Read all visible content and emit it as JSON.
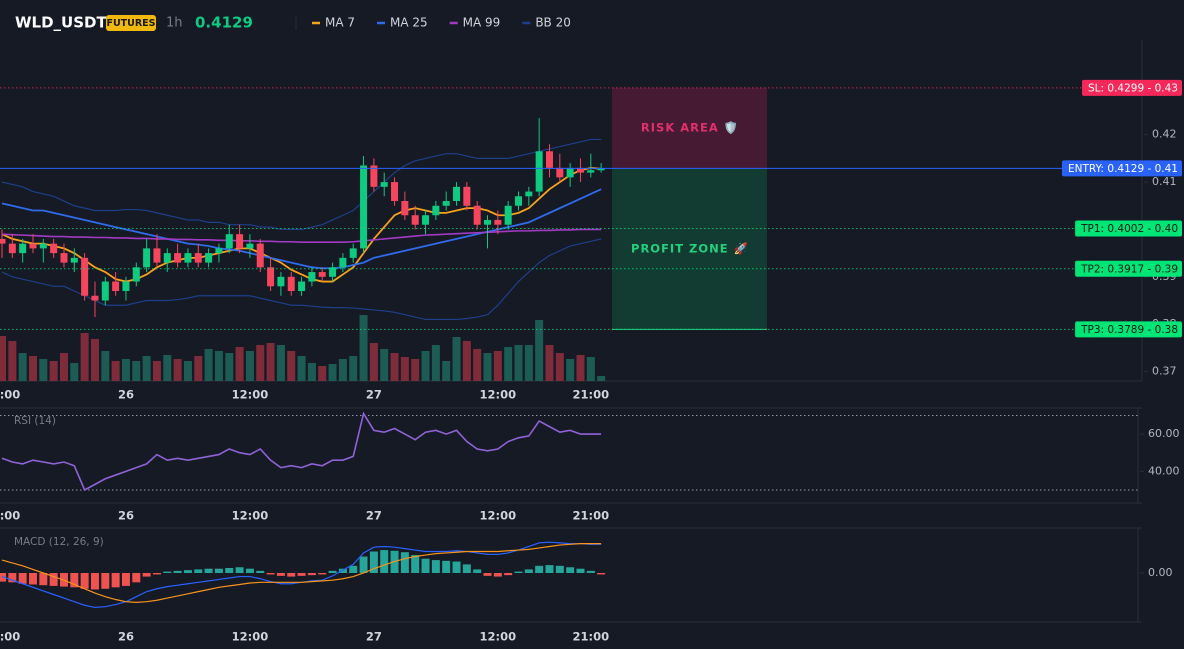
{
  "header": {
    "symbol": "WLD_USDT",
    "badge": "FUTURES",
    "interval": "1h",
    "last": 0.4129
  },
  "chart_data": [
    {
      "type": "candlestick",
      "categories": [
        "12:00",
        null,
        null,
        null,
        null,
        null,
        null,
        null,
        null,
        null,
        null,
        null,
        "26",
        null,
        null,
        null,
        null,
        null,
        null,
        null,
        null,
        null,
        null,
        null,
        "12:00",
        null,
        null,
        null,
        null,
        null,
        null,
        null,
        null,
        null,
        null,
        null,
        "27",
        null,
        null,
        null,
        null,
        null,
        null,
        null,
        null,
        null,
        null,
        null,
        "12:00",
        null,
        null,
        null,
        null,
        null,
        null,
        null,
        null,
        "21:00",
        null
      ],
      "open": [
        0.398,
        0.397,
        0.395,
        0.397,
        0.396,
        0.397,
        0.395,
        0.393,
        0.394,
        0.386,
        0.385,
        0.389,
        0.387,
        0.389,
        0.392,
        0.396,
        0.393,
        0.395,
        0.393,
        0.395,
        0.393,
        0.395,
        0.396,
        0.399,
        0.396,
        0.397,
        0.392,
        0.388,
        0.39,
        0.387,
        0.389,
        0.391,
        0.39,
        0.392,
        0.394,
        0.396,
        0.4135,
        0.409,
        0.41,
        0.406,
        0.403,
        0.401,
        0.403,
        0.405,
        0.406,
        0.409,
        0.405,
        0.401,
        0.402,
        0.401,
        0.405,
        0.407,
        0.408,
        0.4165,
        0.413,
        0.411,
        0.413,
        0.412,
        0.4125
      ],
      "high": [
        0.4,
        0.399,
        0.398,
        0.399,
        0.398,
        0.398,
        0.397,
        0.396,
        0.395,
        0.389,
        0.39,
        0.391,
        0.39,
        0.393,
        0.398,
        0.399,
        0.396,
        0.397,
        0.396,
        0.397,
        0.396,
        0.397,
        0.401,
        0.401,
        0.399,
        0.398,
        0.394,
        0.391,
        0.391,
        0.39,
        0.392,
        0.392,
        0.393,
        0.395,
        0.397,
        0.4155,
        0.415,
        0.412,
        0.411,
        0.408,
        0.405,
        0.404,
        0.406,
        0.408,
        0.41,
        0.41,
        0.406,
        0.403,
        0.404,
        0.406,
        0.408,
        0.409,
        0.4235,
        0.418,
        0.416,
        0.414,
        0.415,
        0.416,
        0.414
      ],
      "low": [
        0.394,
        0.394,
        0.393,
        0.395,
        0.393,
        0.394,
        0.392,
        0.391,
        0.385,
        0.3815,
        0.384,
        0.386,
        0.385,
        0.388,
        0.391,
        0.392,
        0.391,
        0.392,
        0.392,
        0.392,
        0.392,
        0.393,
        0.395,
        0.395,
        0.394,
        0.391,
        0.387,
        0.386,
        0.386,
        0.386,
        0.388,
        0.389,
        0.389,
        0.391,
        0.393,
        0.395,
        0.408,
        0.407,
        0.405,
        0.402,
        0.4,
        0.399,
        0.402,
        0.404,
        0.405,
        0.404,
        0.4,
        0.396,
        0.399,
        0.4,
        0.404,
        0.405,
        0.407,
        0.411,
        0.41,
        0.409,
        0.41,
        0.411,
        0.412
      ],
      "close": [
        0.397,
        0.395,
        0.397,
        0.396,
        0.397,
        0.395,
        0.393,
        0.394,
        0.386,
        0.385,
        0.389,
        0.387,
        0.389,
        0.392,
        0.396,
        0.393,
        0.395,
        0.393,
        0.395,
        0.393,
        0.395,
        0.396,
        0.399,
        0.396,
        0.397,
        0.392,
        0.388,
        0.39,
        0.387,
        0.389,
        0.391,
        0.39,
        0.392,
        0.394,
        0.396,
        0.4135,
        0.409,
        0.41,
        0.406,
        0.403,
        0.401,
        0.403,
        0.405,
        0.406,
        0.409,
        0.405,
        0.401,
        0.402,
        0.401,
        0.405,
        0.407,
        0.408,
        0.4165,
        0.413,
        0.411,
        0.413,
        0.412,
        0.4125,
        0.4129
      ],
      "volume": [
        45,
        40,
        28,
        25,
        22,
        20,
        28,
        18,
        48,
        42,
        30,
        20,
        22,
        20,
        25,
        20,
        26,
        22,
        20,
        25,
        32,
        30,
        28,
        34,
        30,
        36,
        38,
        36,
        30,
        25,
        18,
        15,
        17,
        22,
        25,
        66,
        38,
        32,
        28,
        24,
        22,
        30,
        36,
        20,
        44,
        40,
        32,
        28,
        30,
        34,
        36,
        36,
        61,
        36,
        28,
        22,
        26,
        24,
        5
      ],
      "up_color": "#0ecb81",
      "down_color": "#f6465d",
      "volume_up_color": "#1d5c55",
      "volume_down_color": "#7e2c3a",
      "ylim": [
        0.368,
        0.44
      ],
      "yticks": [
        0.37,
        0.38,
        0.39,
        0.4,
        0.41,
        0.42,
        0.43
      ],
      "series": [
        {
          "name": "MA 7",
          "color": "#f7a21b",
          "values": [
            0.399,
            0.398,
            0.3975,
            0.397,
            0.397,
            0.3965,
            0.396,
            0.395,
            0.3935,
            0.392,
            0.391,
            0.3895,
            0.389,
            0.3895,
            0.3905,
            0.392,
            0.393,
            0.3935,
            0.394,
            0.394,
            0.3945,
            0.395,
            0.3955,
            0.396,
            0.396,
            0.395,
            0.394,
            0.393,
            0.3915,
            0.3905,
            0.3895,
            0.389,
            0.389,
            0.3905,
            0.392,
            0.395,
            0.398,
            0.4005,
            0.403,
            0.404,
            0.4045,
            0.404,
            0.4035,
            0.4035,
            0.404,
            0.4045,
            0.4045,
            0.404,
            0.403,
            0.403,
            0.4035,
            0.4045,
            0.4065,
            0.4085,
            0.41,
            0.4115,
            0.4125,
            0.413,
            0.4128
          ]
        },
        {
          "name": "MA 25",
          "color": "#2f6bea",
          "values": [
            0.4055,
            0.405,
            0.4045,
            0.404,
            0.404,
            0.4035,
            0.403,
            0.4025,
            0.402,
            0.4015,
            0.401,
            0.4005,
            0.4,
            0.3995,
            0.399,
            0.3985,
            0.398,
            0.3975,
            0.397,
            0.3968,
            0.3965,
            0.396,
            0.3958,
            0.3955,
            0.395,
            0.3945,
            0.394,
            0.3935,
            0.393,
            0.3925,
            0.392,
            0.3918,
            0.3918,
            0.392,
            0.3925,
            0.393,
            0.394,
            0.3945,
            0.395,
            0.3955,
            0.396,
            0.3965,
            0.397,
            0.3975,
            0.398,
            0.3985,
            0.399,
            0.3995,
            0.4,
            0.4005,
            0.401,
            0.4015,
            0.4025,
            0.4035,
            0.4045,
            0.4055,
            0.4065,
            0.4075,
            0.4085
          ]
        },
        {
          "name": "MA 99",
          "color": "#a23bc4",
          "values": [
            0.399,
            0.3989,
            0.3988,
            0.3987,
            0.3986,
            0.3985,
            0.3985,
            0.3984,
            0.3984,
            0.3983,
            0.3983,
            0.3982,
            0.3982,
            0.3981,
            0.3981,
            0.398,
            0.398,
            0.3979,
            0.3979,
            0.3978,
            0.3978,
            0.3977,
            0.3977,
            0.3976,
            0.3976,
            0.3975,
            0.3975,
            0.3974,
            0.3974,
            0.3973,
            0.3973,
            0.3973,
            0.3973,
            0.3973,
            0.3974,
            0.3976,
            0.3978,
            0.398,
            0.3982,
            0.3984,
            0.3986,
            0.3988,
            0.3989,
            0.399,
            0.3991,
            0.3992,
            0.3993,
            0.3994,
            0.3995,
            0.3996,
            0.3997,
            0.3997,
            0.3998,
            0.3998,
            0.3999,
            0.3999,
            0.4,
            0.4,
            0.4
          ]
        },
        {
          "name": "BB 20",
          "color": "#1e3f8a",
          "upper": [
            0.41,
            0.4095,
            0.409,
            0.408,
            0.4075,
            0.407,
            0.406,
            0.405,
            0.4045,
            0.404,
            0.404,
            0.404,
            0.4042,
            0.4042,
            0.404,
            0.4035,
            0.403,
            0.4025,
            0.402,
            0.402,
            0.4015,
            0.4015,
            0.401,
            0.401,
            0.401,
            0.4005,
            0.4005,
            0.4,
            0.4,
            0.4,
            0.4005,
            0.401,
            0.402,
            0.403,
            0.404,
            0.406,
            0.408,
            0.41,
            0.412,
            0.4135,
            0.4145,
            0.415,
            0.4155,
            0.416,
            0.416,
            0.4155,
            0.415,
            0.415,
            0.415,
            0.415,
            0.4155,
            0.416,
            0.4165,
            0.417,
            0.4175,
            0.418,
            0.4185,
            0.419,
            0.419
          ],
          "lower": [
            0.391,
            0.39,
            0.3895,
            0.389,
            0.3885,
            0.388,
            0.388,
            0.387,
            0.386,
            0.385,
            0.384,
            0.384,
            0.384,
            0.3845,
            0.385,
            0.385,
            0.385,
            0.3852,
            0.3855,
            0.386,
            0.386,
            0.386,
            0.386,
            0.386,
            0.386,
            0.3855,
            0.385,
            0.3845,
            0.384,
            0.384,
            0.3838,
            0.3836,
            0.3835,
            0.3835,
            0.3834,
            0.3832,
            0.383,
            0.3828,
            0.3825,
            0.382,
            0.3815,
            0.381,
            0.381,
            0.381,
            0.381,
            0.3812,
            0.3815,
            0.382,
            0.384,
            0.3865,
            0.389,
            0.391,
            0.393,
            0.3945,
            0.3955,
            0.3965,
            0.397,
            0.3975,
            0.398
          ]
        }
      ],
      "levels": [
        {
          "value": 0.4299,
          "label": "SL: 0.4299 - 0.43",
          "color": "#f6285a",
          "style": "dotted"
        },
        {
          "value": 0.4129,
          "label": "ENTRY: 0.4129 - 0.41",
          "color": "#2962ff",
          "style": "solid"
        },
        {
          "value": 0.4002,
          "label": "TP1: 0.4002 - 0.40",
          "color": "#00e676",
          "style": "dotted"
        },
        {
          "value": 0.3917,
          "label": "TP2: 0.3917 - 0.39",
          "color": "#00e676",
          "style": "dotted"
        },
        {
          "value": 0.3789,
          "label": "TP3: 0.3789 - 0.38",
          "color": "#00e676",
          "style": "dotted"
        }
      ],
      "zones": [
        {
          "label": "RISK AREA 🛡️",
          "color": "#e0306b"
        },
        {
          "label": "PROFIT ZONE 🚀",
          "color": "#25d07d"
        }
      ]
    },
    {
      "type": "line",
      "title": "RSI (14)",
      "categories": [
        "12:00",
        null,
        null,
        null,
        null,
        null,
        null,
        null,
        null,
        null,
        null,
        null,
        "26",
        null,
        null,
        null,
        null,
        null,
        null,
        null,
        null,
        null,
        null,
        null,
        "12:00",
        null,
        null,
        null,
        null,
        null,
        null,
        null,
        null,
        null,
        null,
        null,
        "27",
        null,
        null,
        null,
        null,
        null,
        null,
        null,
        null,
        null,
        null,
        null,
        "12:00",
        null,
        null,
        null,
        null,
        null,
        null,
        null,
        null,
        "21:00",
        null
      ],
      "values": [
        47,
        45,
        44,
        46,
        45,
        44,
        45,
        43,
        30,
        33,
        36,
        38,
        40,
        42,
        44,
        49,
        46,
        47,
        46,
        47,
        48,
        49,
        52,
        50,
        49,
        52,
        46,
        42,
        43,
        42,
        44,
        43,
        46,
        46,
        48,
        71,
        62,
        61,
        63,
        60,
        57,
        61,
        62,
        60,
        62,
        56,
        52,
        51,
        52,
        56,
        58,
        59,
        67,
        64,
        61,
        62,
        60,
        60,
        60
      ],
      "color": "#8e63d6",
      "ylim": [
        23,
        74
      ],
      "yticks": [
        {
          "value": 60,
          "label": "60.00"
        },
        {
          "value": 40,
          "label": "40.00"
        }
      ],
      "hlines": [
        70,
        30
      ]
    },
    {
      "type": "macd",
      "title": "MACD (12, 26, 9)",
      "categories": [
        "12:00",
        null,
        null,
        null,
        null,
        null,
        null,
        null,
        null,
        null,
        null,
        null,
        "26",
        null,
        null,
        null,
        null,
        null,
        null,
        null,
        null,
        null,
        null,
        null,
        "12:00",
        null,
        null,
        null,
        null,
        null,
        null,
        null,
        null,
        null,
        null,
        null,
        "27",
        null,
        null,
        null,
        null,
        null,
        null,
        null,
        null,
        null,
        null,
        null,
        "12:00",
        null,
        null,
        null,
        null,
        null,
        null,
        null,
        null,
        "21:00",
        null
      ],
      "histogram": [
        -0.0012,
        -0.0013,
        -0.0015,
        -0.0016,
        -0.0017,
        -0.0018,
        -0.0019,
        -0.002,
        -0.0022,
        -0.0023,
        -0.0022,
        -0.002,
        -0.0018,
        -0.0013,
        -0.0005,
        -0.0002,
        0.0002,
        0.0003,
        0.0004,
        0.0005,
        0.0006,
        0.0006,
        0.0007,
        0.0008,
        0.0006,
        0.0003,
        -0.0002,
        -0.0004,
        -0.0005,
        -0.0004,
        -0.0003,
        -0.0002,
        0.0003,
        0.0006,
        0.001,
        0.0023,
        0.003,
        0.0032,
        0.0031,
        0.0029,
        0.0025,
        0.002,
        0.0018,
        0.0017,
        0.0016,
        0.0012,
        0.0005,
        -0.0004,
        -0.0005,
        -0.0003,
        0.0002,
        0.0005,
        0.001,
        0.0011,
        0.001,
        0.0008,
        0.0006,
        0.0003,
        -0.0002
      ],
      "macd": [
        -0.0005,
        -0.001,
        -0.0015,
        -0.002,
        -0.0025,
        -0.003,
        -0.0035,
        -0.004,
        -0.0045,
        -0.0048,
        -0.0047,
        -0.0044,
        -0.004,
        -0.0033,
        -0.0026,
        -0.0022,
        -0.0019,
        -0.0017,
        -0.0015,
        -0.0013,
        -0.0011,
        -0.0009,
        -0.0007,
        -0.0005,
        -0.0005,
        -0.0008,
        -0.0012,
        -0.0015,
        -0.0015,
        -0.0013,
        -0.0011,
        -0.001,
        -0.0004,
        0.0004,
        0.0012,
        0.0028,
        0.0036,
        0.0037,
        0.0036,
        0.0034,
        0.0032,
        0.003,
        0.003,
        0.003,
        0.0031,
        0.003,
        0.0028,
        0.0026,
        0.0026,
        0.0028,
        0.0032,
        0.0037,
        0.0042,
        0.0043,
        0.0042,
        0.0041,
        0.0041,
        0.004,
        0.004
      ],
      "signal": [
        0.0018,
        0.0014,
        0.001,
        0.0005,
        0,
        -0.0005,
        -0.001,
        -0.0016,
        -0.0022,
        -0.0028,
        -0.0033,
        -0.0037,
        -0.004,
        -0.0041,
        -0.004,
        -0.0038,
        -0.0035,
        -0.0032,
        -0.0029,
        -0.0026,
        -0.0023,
        -0.002,
        -0.0018,
        -0.0016,
        -0.0014,
        -0.0013,
        -0.0013,
        -0.0013,
        -0.0013,
        -0.0013,
        -0.0012,
        -0.0011,
        -0.001,
        -0.0008,
        -0.0005,
        0,
        0.0006,
        0.0011,
        0.0016,
        0.002,
        0.0023,
        0.0025,
        0.0027,
        0.0028,
        0.0029,
        0.003,
        0.003,
        0.003,
        0.003,
        0.0031,
        0.0032,
        0.0033,
        0.0035,
        0.0037,
        0.0039,
        0.004,
        0.0041,
        0.0041,
        0.0041
      ],
      "macd_color": "#2962ff",
      "signal_color": "#f7931a",
      "positive_color": "#26a69a",
      "negative_color": "#ef5350",
      "ylim": [
        -0.006,
        0.006
      ],
      "yticks": [
        {
          "value": 0,
          "label": "0.00"
        }
      ]
    }
  ]
}
